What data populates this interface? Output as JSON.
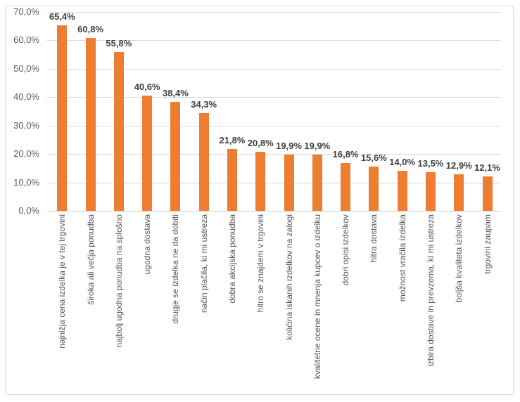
{
  "chart_data": {
    "type": "bar",
    "title": "",
    "xlabel": "",
    "ylabel": "",
    "ylim": [
      0,
      70
    ],
    "grid": true,
    "legend": "none",
    "y_tick_labels": [
      "0,0%",
      "10,0%",
      "20,0%",
      "30,0%",
      "40,0%",
      "50,0%",
      "60,0%",
      "70,0%"
    ],
    "categories": [
      "najnižja cena izdelka je v tej trgovini",
      "široka ali večja ponudba",
      "najbolj ugodna ponudba na splošno",
      "ugodna dostava",
      "drugje se izdelka ne da dobiti",
      "način plačila, ki mi ustreza",
      "dobra akcijska ponudba",
      "hitro se znajdem v trgovini",
      "količina iskanih izdelkov na zalogi",
      "kvalitetne ocene in mnenja kupcev o izdelku",
      "dobri opisi izdelkov",
      "hitra dostava",
      "možnost vračila izdelka",
      "izbira dostave in prevzema, ki mi ustreza",
      "boljša kvaliteta izdelkov",
      "trgovini zaupam"
    ],
    "values": [
      65.4,
      60.8,
      55.8,
      40.6,
      38.4,
      34.3,
      21.8,
      20.8,
      19.9,
      19.9,
      16.8,
      15.6,
      14.0,
      13.5,
      12.9,
      12.1
    ],
    "data_labels": [
      "65,4%",
      "60,8%",
      "55,8%",
      "40,6%",
      "38,4%",
      "34,3%",
      "21,8%",
      "20,8%",
      "19,9%",
      "19,9%",
      "16,8%",
      "15,6%",
      "14,0%",
      "13,5%",
      "12,9%",
      "12,1%"
    ],
    "colors": {
      "bar": "#ED7D31",
      "gridline": "#D9D9D9",
      "axis_line": "#D0D0D0",
      "tick_label": "#595959",
      "data_label": "#404040",
      "chart_border": "#D9D9D9",
      "background": "#FFFFFF"
    }
  }
}
